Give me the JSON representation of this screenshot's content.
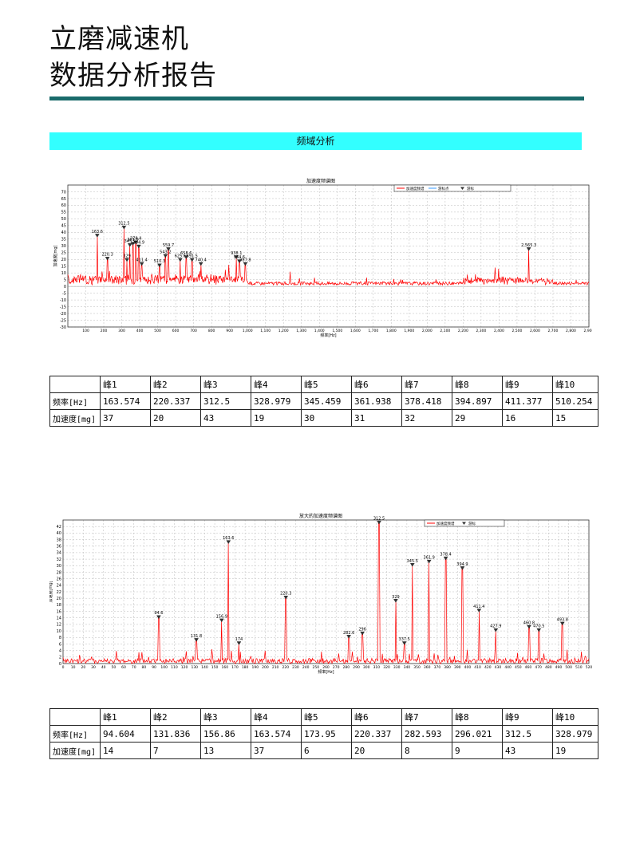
{
  "report": {
    "title_line1": "立磨减速机",
    "title_line2": "数据分析报告",
    "section_label": "频域分析"
  },
  "chart1": {
    "title": "加速度频谱图",
    "ylabel": "加速度[mg]",
    "xlabel": "频率[Hz]",
    "legend": [
      "加速度频谱",
      "游标点",
      "游标"
    ],
    "colors": {
      "spectrum": "#ff0000",
      "cursor": "#3399ff",
      "marker": "#000000"
    }
  },
  "chart2": {
    "title": "放大的加速度频谱图",
    "ylabel": "加速度[mg]",
    "xlabel": "频率[Hz]",
    "legend": [
      "加速度频谱",
      "游标"
    ],
    "colors": {
      "spectrum": "#ff0000",
      "marker": "#000000"
    }
  },
  "chart_data": [
    {
      "type": "line",
      "title": "加速度频谱图",
      "xlabel": "频率[Hz]",
      "ylabel": "加速度[mg]",
      "xlim": [
        0,
        2900
      ],
      "ylim": [
        -30,
        75
      ],
      "xticks": [
        100,
        200,
        300,
        400,
        500,
        600,
        700,
        800,
        900,
        1000,
        1100,
        1200,
        1300,
        1400,
        1500,
        1600,
        1700,
        1800,
        1900,
        2000,
        2100,
        2200,
        2300,
        2400,
        2500,
        2600,
        2700,
        2800,
        2900
      ],
      "xtick_labels": [
        "100",
        "200",
        "300",
        "400",
        "500",
        "600",
        "700",
        "800",
        "900",
        "1,000",
        "1,100",
        "1,200",
        "1,300",
        "1,400",
        "1,500",
        "1,600",
        "1,700",
        "1,800",
        "1,900",
        "2,000",
        "2,100",
        "2,200",
        "2,300",
        "2,400",
        "2,500",
        "2,600",
        "2,700",
        "2,800",
        "2,900"
      ],
      "yticks": [
        -30,
        -25,
        -20,
        -15,
        -10,
        -5,
        0,
        5,
        10,
        15,
        20,
        25,
        30,
        35,
        40,
        45,
        50,
        55,
        60,
        65,
        70
      ],
      "grid": true,
      "legend_position": "top-right",
      "peaks": [
        {
          "x": 163.574,
          "y": 37,
          "label": "163.6"
        },
        {
          "x": 220.337,
          "y": 20,
          "label": "220.3"
        },
        {
          "x": 312.5,
          "y": 43,
          "label": "312.5"
        },
        {
          "x": 328.979,
          "y": 19,
          "label": "329"
        },
        {
          "x": 345.459,
          "y": 30,
          "label": "345.5"
        },
        {
          "x": 361.938,
          "y": 31,
          "label": "361.9"
        },
        {
          "x": 378.418,
          "y": 32,
          "label": "378.4"
        },
        {
          "x": 394.897,
          "y": 29,
          "label": "394.9"
        },
        {
          "x": 411.377,
          "y": 16,
          "label": "411.4"
        },
        {
          "x": 510.254,
          "y": 15,
          "label": "510.3"
        },
        {
          "x": 543.2,
          "y": 22,
          "label": "543.2"
        },
        {
          "x": 559.7,
          "y": 27,
          "label": "559.7"
        },
        {
          "x": 625.6,
          "y": 19,
          "label": "625.6"
        },
        {
          "x": 658.6,
          "y": 21,
          "label": "658.6"
        },
        {
          "x": 691.5,
          "y": 19,
          "label": "691.5"
        },
        {
          "x": 740.4,
          "y": 16,
          "label": "740.4"
        },
        {
          "x": 938.1,
          "y": 21,
          "label": "938.1"
        },
        {
          "x": 954.6,
          "y": 18,
          "label": "954.6"
        },
        {
          "x": 987.8,
          "y": 16,
          "label": "987.8"
        },
        {
          "x": 2565.3,
          "y": 27,
          "label": "2,565.3"
        }
      ]
    },
    {
      "type": "line",
      "title": "放大的加速度频谱图",
      "xlabel": "频率[Hz]",
      "ylabel": "加速度[mg]",
      "xlim": [
        0,
        520
      ],
      "ylim": [
        0,
        44
      ],
      "xticks": [
        0,
        10,
        20,
        30,
        40,
        50,
        60,
        70,
        80,
        90,
        100,
        110,
        120,
        130,
        140,
        150,
        160,
        170,
        180,
        190,
        200,
        210,
        220,
        230,
        240,
        250,
        260,
        270,
        280,
        290,
        300,
        310,
        320,
        330,
        340,
        350,
        360,
        370,
        380,
        390,
        400,
        410,
        420,
        430,
        440,
        450,
        460,
        470,
        480,
        490,
        500,
        510,
        520
      ],
      "yticks": [
        0,
        2,
        4,
        6,
        8,
        10,
        12,
        14,
        16,
        18,
        20,
        22,
        24,
        26,
        28,
        30,
        32,
        34,
        36,
        38,
        40,
        42
      ],
      "grid": true,
      "legend_position": "top-right",
      "peaks": [
        {
          "x": 94.604,
          "y": 14,
          "label": "94.6"
        },
        {
          "x": 131.836,
          "y": 7,
          "label": "131.8"
        },
        {
          "x": 156.86,
          "y": 13,
          "label": "156.9"
        },
        {
          "x": 163.574,
          "y": 37,
          "label": "163.6"
        },
        {
          "x": 173.95,
          "y": 6,
          "label": "174"
        },
        {
          "x": 220.337,
          "y": 20,
          "label": "220.3"
        },
        {
          "x": 282.593,
          "y": 8,
          "label": "282.6"
        },
        {
          "x": 296.021,
          "y": 9,
          "label": "296"
        },
        {
          "x": 312.5,
          "y": 43,
          "label": "312.5"
        },
        {
          "x": 328.979,
          "y": 19,
          "label": "329"
        },
        {
          "x": 337.5,
          "y": 6,
          "label": "337.5"
        },
        {
          "x": 345.459,
          "y": 30,
          "label": "345.5"
        },
        {
          "x": 361.938,
          "y": 31,
          "label": "361.9"
        },
        {
          "x": 378.418,
          "y": 32,
          "label": "378.4"
        },
        {
          "x": 394.897,
          "y": 29,
          "label": "394.9"
        },
        {
          "x": 411.377,
          "y": 16,
          "label": "411.4"
        },
        {
          "x": 427.9,
          "y": 10,
          "label": "427.9"
        },
        {
          "x": 460.8,
          "y": 11,
          "label": "460.8"
        },
        {
          "x": 470.5,
          "y": 10,
          "label": "470.5"
        },
        {
          "x": 493.8,
          "y": 12,
          "label": "493.8"
        }
      ]
    }
  ],
  "table1": {
    "headers": [
      "",
      "峰1",
      "峰2",
      "峰3",
      "峰4",
      "峰5",
      "峰6",
      "峰7",
      "峰8",
      "峰9",
      "峰10"
    ],
    "rows": [
      [
        "频率[Hz]",
        "163.574",
        "220.337",
        "312.5",
        "328.979",
        "345.459",
        "361.938",
        "378.418",
        "394.897",
        "411.377",
        "510.254"
      ],
      [
        "加速度[mg]",
        "37",
        "20",
        "43",
        "19",
        "30",
        "31",
        "32",
        "29",
        "16",
        "15"
      ]
    ]
  },
  "table2": {
    "headers": [
      "",
      "峰1",
      "峰2",
      "峰3",
      "峰4",
      "峰5",
      "峰6",
      "峰7",
      "峰8",
      "峰9",
      "峰10"
    ],
    "rows": [
      [
        "频率[Hz]",
        "94.604",
        "131.836",
        "156.86",
        "163.574",
        "173.95",
        "220.337",
        "282.593",
        "296.021",
        "312.5",
        "328.979"
      ],
      [
        "加速度[mg]",
        "14",
        "7",
        "13",
        "37",
        "6",
        "20",
        "8",
        "9",
        "43",
        "19"
      ]
    ]
  }
}
